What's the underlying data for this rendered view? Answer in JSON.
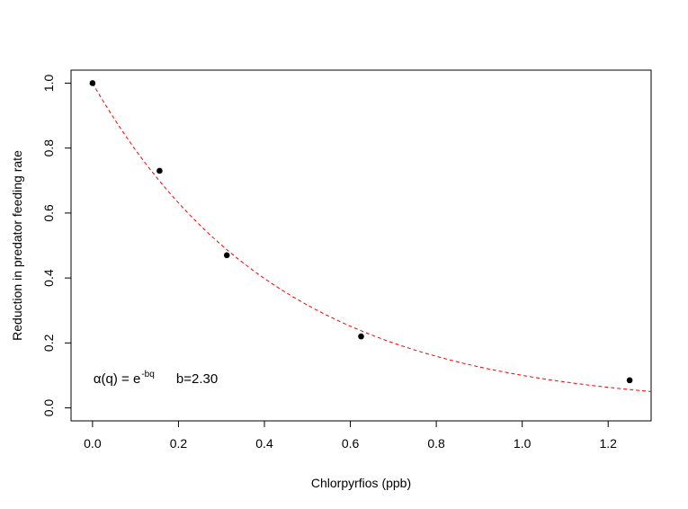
{
  "chart_data": {
    "type": "scatter",
    "title": "",
    "xlabel": "Chlorpyrfios (ppb)",
    "ylabel": "Reduction in predator feeding rate",
    "xlim": [
      -0.05,
      1.3
    ],
    "ylim": [
      -0.04,
      1.04
    ],
    "x_ticks": [
      "0.0",
      "0.2",
      "0.4",
      "0.6",
      "0.8",
      "1.0",
      "1.2"
    ],
    "y_ticks": [
      "0.0",
      "0.2",
      "0.4",
      "0.6",
      "0.8",
      "1.0"
    ],
    "grid": false,
    "points": {
      "x": [
        0.0,
        0.156,
        0.3125,
        0.625,
        1.25
      ],
      "y": [
        1.0,
        0.73,
        0.47,
        0.22,
        0.085
      ],
      "color": "#000000"
    },
    "fit": {
      "b": 2.3,
      "color": "#ff0000",
      "style": "dashed"
    },
    "annotation": {
      "alpha_text": "α(q) = e",
      "exponent_text": "-bq",
      "b_text": "b=2.30",
      "x": 0.0,
      "y": 0.09
    }
  }
}
